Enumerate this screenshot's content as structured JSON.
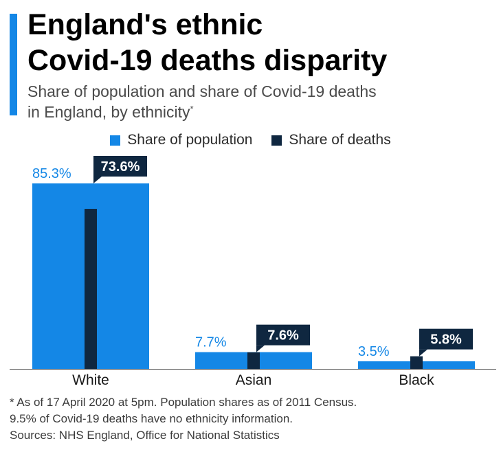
{
  "title_lines": [
    "England's ethnic",
    "Covid-19 deaths disparity"
  ],
  "subtitle_lines": [
    "Share of population and share of Covid-19 deaths",
    "in England, by ethnicity"
  ],
  "subtitle_mark": "*",
  "legend": [
    {
      "label": "Share of population",
      "color": "#1487e6"
    },
    {
      "label": "Share of deaths",
      "color": "#0f2740"
    }
  ],
  "chart_data": {
    "type": "bar",
    "categories": [
      "White",
      "Asian",
      "Black"
    ],
    "series": [
      {
        "name": "Share of population",
        "values": [
          85.3,
          7.7,
          3.5
        ],
        "labels": [
          "85.3%",
          "7.7%",
          "3.5%"
        ],
        "color": "#1487e6"
      },
      {
        "name": "Share of deaths",
        "values": [
          73.6,
          7.6,
          5.8
        ],
        "labels": [
          "73.6%",
          "7.6%",
          "5.8%"
        ],
        "color": "#0f2740"
      }
    ],
    "ylim": [
      0,
      100
    ],
    "grid": false,
    "legend_position": "top"
  },
  "footnotes": [
    "* As of 17 April 2020 at 5pm. Population shares as of 2011 Census.",
    "9.5% of Covid-19 deaths have no ethnicity information.",
    "Sources: NHS England, Office for National Statistics"
  ]
}
